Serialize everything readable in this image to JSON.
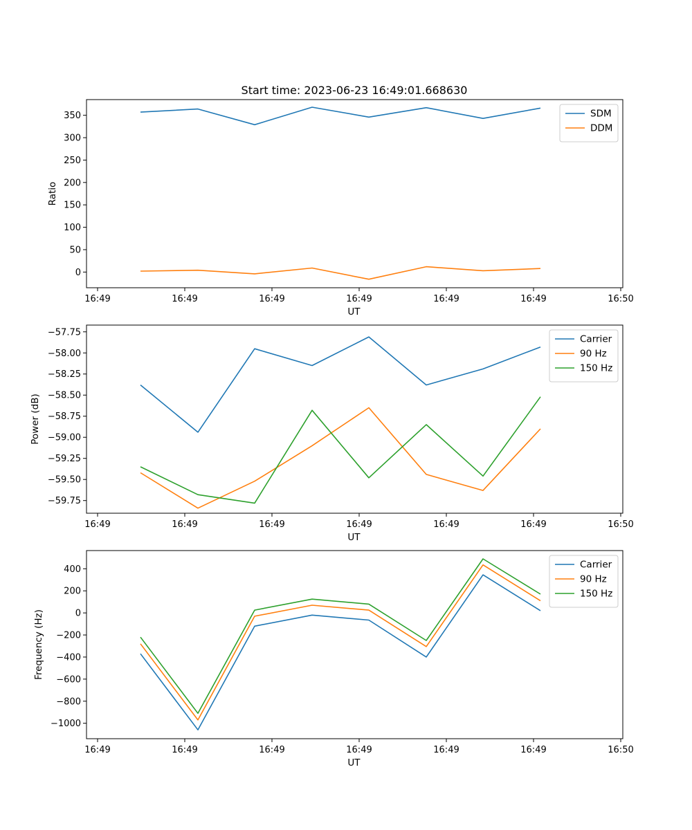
{
  "title": "Start time: 2023-06-23 16:49:01.668630",
  "colors": {
    "blue": "#1f77b4",
    "orange": "#ff7f0e",
    "green": "#2ca02c",
    "axis": "#000000",
    "background": "#ffffff"
  },
  "chart_data": [
    {
      "type": "line",
      "title": "Start time: 2023-06-23 16:49:01.668630",
      "xlabel": "UT",
      "ylabel": "Ratio",
      "x_tick_labels": [
        "16:49",
        "16:49",
        "16:49",
        "16:49",
        "16:49",
        "16:49",
        "16:49",
        "16:50"
      ],
      "y_ticks": [
        0,
        50,
        100,
        150,
        200,
        250,
        300,
        350
      ],
      "ylim": [
        -35,
        385
      ],
      "legend_position": "top-right",
      "series": [
        {
          "name": "SDM",
          "color": "#1f77b4",
          "values": [
            357,
            364,
            329,
            368,
            346,
            367,
            343,
            366
          ]
        },
        {
          "name": "DDM",
          "color": "#ff7f0e",
          "values": [
            2,
            4,
            -4,
            9,
            -16,
            12,
            3,
            8
          ]
        }
      ]
    },
    {
      "type": "line",
      "xlabel": "UT",
      "ylabel": "Power (dB)",
      "x_tick_labels": [
        "16:49",
        "16:49",
        "16:49",
        "16:49",
        "16:49",
        "16:49",
        "16:49",
        "16:50"
      ],
      "y_ticks": [
        -59.75,
        -59.5,
        -59.25,
        -59.0,
        -58.75,
        -58.5,
        -58.25,
        -58.0,
        -57.75
      ],
      "y_tick_labels": [
        "−59.75",
        "−59.50",
        "−59.25",
        "−59.00",
        "−58.75",
        "−58.50",
        "−58.25",
        "−58.00",
        "−57.75"
      ],
      "ylim": [
        -59.9,
        -57.67
      ],
      "legend_position": "top-right",
      "series": [
        {
          "name": "Carrier",
          "color": "#1f77b4",
          "values": [
            -58.38,
            -58.94,
            -57.95,
            -58.15,
            -57.81,
            -58.38,
            -58.19,
            -57.93
          ]
        },
        {
          "name": "90 Hz",
          "color": "#ff7f0e",
          "values": [
            -59.42,
            -59.84,
            -59.52,
            -59.1,
            -58.65,
            -59.44,
            -59.63,
            -58.9
          ]
        },
        {
          "name": "150 Hz",
          "color": "#2ca02c",
          "values": [
            -59.35,
            -59.68,
            -59.78,
            -58.68,
            -59.48,
            -58.85,
            -59.46,
            -58.52
          ]
        }
      ]
    },
    {
      "type": "line",
      "xlabel": "UT",
      "ylabel": "Frequency (Hz)",
      "x_tick_labels": [
        "16:49",
        "16:49",
        "16:49",
        "16:49",
        "16:49",
        "16:49",
        "16:49",
        "16:50"
      ],
      "y_ticks": [
        -1000,
        -800,
        -600,
        -400,
        -200,
        0,
        200,
        400
      ],
      "y_tick_labels": [
        "−1000",
        "−800",
        "−600",
        "−400",
        "−200",
        "0",
        "200",
        "400"
      ],
      "ylim": [
        -1140,
        565
      ],
      "legend_position": "top-right",
      "series": [
        {
          "name": "Carrier",
          "color": "#1f77b4",
          "values": [
            -370,
            -1060,
            -120,
            -20,
            -65,
            -400,
            345,
            20
          ]
        },
        {
          "name": "90 Hz",
          "color": "#ff7f0e",
          "values": [
            -280,
            -970,
            -30,
            70,
            25,
            -305,
            435,
            110
          ]
        },
        {
          "name": "150 Hz",
          "color": "#2ca02c",
          "values": [
            -220,
            -910,
            25,
            125,
            80,
            -250,
            490,
            170
          ]
        }
      ]
    }
  ]
}
